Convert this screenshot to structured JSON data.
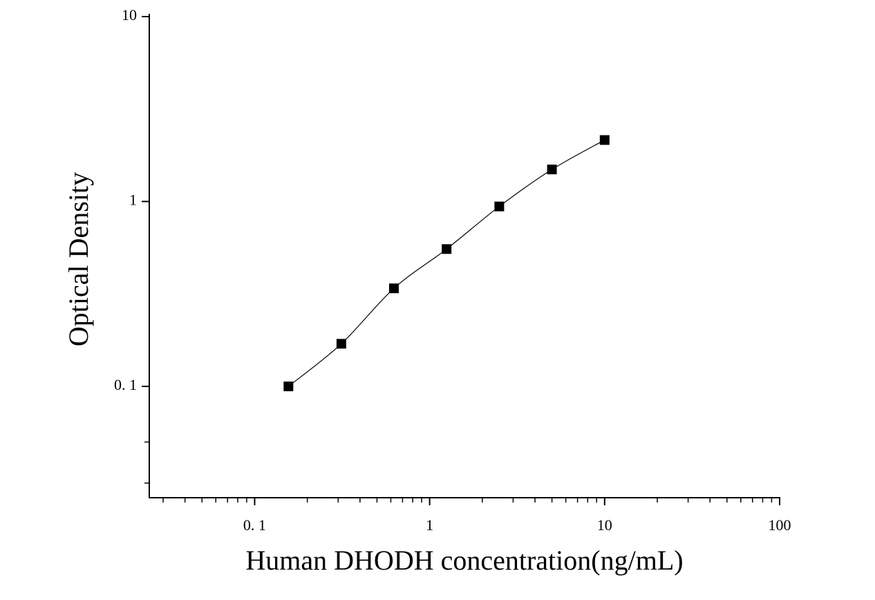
{
  "chart_data": {
    "type": "scatter",
    "x_label": "Human DHODH concentration(ng/mL)",
    "y_label": "Optical Density",
    "xscale": "log",
    "yscale": "log",
    "xlim": [
      0.025,
      100
    ],
    "ylim": [
      0.025,
      10
    ],
    "xticks": [
      {
        "value": 0.1,
        "label": "0. 1"
      },
      1,
      10,
      100
    ],
    "yticks": [
      {
        "value": 0.1,
        "label": "0. 1"
      },
      1,
      10
    ],
    "xminorticks": [
      0.03,
      0.04,
      0.05,
      0.06,
      0.07,
      0.08,
      0.09,
      0.2,
      0.3,
      0.4,
      0.5,
      0.6,
      0.7,
      0.8,
      0.9,
      2,
      3,
      4,
      5,
      6,
      7,
      8,
      9,
      20,
      30,
      40,
      50,
      60,
      70,
      80,
      90
    ],
    "yminorticks": [
      0.03,
      0.05
    ],
    "series": [
      {
        "color": "#000000",
        "fit_line": true,
        "x": [
          0.156,
          0.313,
          0.625,
          1.25,
          2.5,
          5,
          10
        ],
        "values": [
          0.1,
          0.17,
          0.339,
          0.553,
          0.94,
          1.49,
          2.15
        ]
      }
    ]
  }
}
